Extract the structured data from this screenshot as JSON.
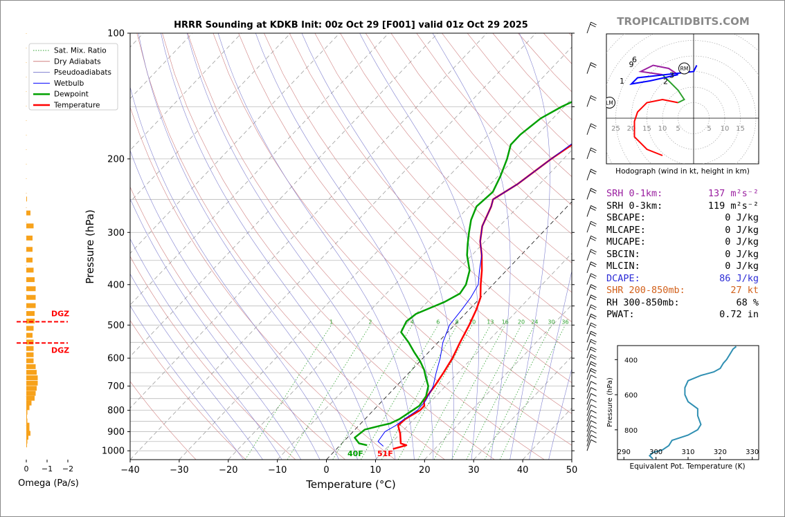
{
  "brand": "TROPICALTIDBITS.COM",
  "title": "HRRR Sounding at KDKB Init: 00z Oct 29 [F001] valid 01z Oct 29 2025",
  "skewt": {
    "xlabel": "Temperature (°C)",
    "ylabel": "Pressure (hPa)",
    "xticks": [
      "−40",
      "−30",
      "−20",
      "−10",
      "0",
      "10",
      "20",
      "30",
      "40",
      "50"
    ],
    "yticks": [
      "100",
      "200",
      "300",
      "400",
      "500",
      "600",
      "700",
      "800",
      "900",
      "1000"
    ],
    "surface_temp_label": "51F",
    "surface_dew_label": "40F",
    "mixratio_labels": [
      "1",
      "2",
      "4",
      "6",
      "8",
      "10",
      "13",
      "16",
      "20",
      "24",
      "30",
      "36"
    ]
  },
  "legend": [
    {
      "label": "Sat. Mix. Ratio",
      "color": "#2ca02c",
      "style": "dotted"
    },
    {
      "label": "Dry Adiabats",
      "color": "#d08080",
      "style": "solid"
    },
    {
      "label": "Pseudoadiabats",
      "color": "#8080d0",
      "style": "solid"
    },
    {
      "label": "Wetbulb",
      "color": "#0000ff",
      "style": "solid"
    },
    {
      "label": "Dewpoint",
      "color": "#00a000",
      "style": "thick"
    },
    {
      "label": "Temperature",
      "color": "#ff0000",
      "style": "thick"
    }
  ],
  "omega": {
    "xlabel": "Omega (Pa/s)",
    "xticks": [
      "0",
      "−1",
      "−2"
    ],
    "dgz_label": "DGZ"
  },
  "hodograph": {
    "caption": "Hodograph (wind in kt, height in km)",
    "ring_labels": [
      "25",
      "20",
      "15",
      "10",
      "5",
      "5",
      "10",
      "15"
    ],
    "height_labels": [
      "1",
      "2",
      "3",
      "6",
      "9"
    ],
    "rm_label": "RM",
    "lm_label": "LM"
  },
  "indices": [
    {
      "label": "SRH 0-1km:",
      "value": "137 m²s⁻²",
      "color": "#9a1fa0"
    },
    {
      "label": "SRH 0-3km:",
      "value": "119 m²s⁻²",
      "color": "#000000"
    },
    {
      "label": "SBCAPE:",
      "value": "0 J/kg",
      "color": "#000000"
    },
    {
      "label": "MLCAPE:",
      "value": "0 J/kg",
      "color": "#000000"
    },
    {
      "label": "MUCAPE:",
      "value": "0 J/kg",
      "color": "#000000"
    },
    {
      "label": "SBCIN:",
      "value": "0 J/kg",
      "color": "#000000"
    },
    {
      "label": "MLCIN:",
      "value": "0 J/kg",
      "color": "#000000"
    },
    {
      "label": "DCAPE:",
      "value": "86 J/kg",
      "color": "#2b2bd6"
    },
    {
      "label": "SHR 200-850mb:",
      "value": "27 kt",
      "color": "#d2601a"
    },
    {
      "label": "RH 300-850mb:",
      "value": "68 %",
      "color": "#000000"
    },
    {
      "label": "PWAT:",
      "value": "0.72 in",
      "color": "#000000"
    }
  ],
  "theta_e_panel": {
    "xlabel": "Equivalent Pot. Temperature (K)",
    "ylabel": "Pressure (hPa)",
    "xticks": [
      "290",
      "300",
      "310",
      "320",
      "330"
    ],
    "yticks": [
      "400",
      "600",
      "800"
    ]
  },
  "chart_data": [
    {
      "type": "line",
      "name": "skewt",
      "title": "HRRR Sounding at KDKB Init: 00z Oct 29 [F001] valid 01z Oct 29 2025",
      "xlabel": "Temperature (°C)",
      "ylabel": "Pressure (hPa)",
      "xlim": [
        -40,
        50
      ],
      "ylim": [
        1050,
        100
      ],
      "y_scale": "log",
      "skew": true,
      "legend_position": "top-left",
      "grid": true,
      "series": [
        {
          "name": "Temperature",
          "color": "#ff0000",
          "points": [
            [
              11.5,
              990
            ],
            [
              13.5,
              970
            ],
            [
              12.0,
              960
            ],
            [
              10.0,
              910
            ],
            [
              8.0,
              870
            ],
            [
              8.2,
              840
            ],
            [
              9.5,
              800
            ],
            [
              9.5,
              780
            ],
            [
              8.5,
              760
            ],
            [
              8.0,
              720
            ],
            [
              7.8,
              700
            ],
            [
              7.0,
              650
            ],
            [
              6.0,
              600
            ],
            [
              4.5,
              550
            ],
            [
              3.0,
              500
            ],
            [
              1.5,
              460
            ],
            [
              0.0,
              430
            ],
            [
              -2.5,
              400
            ],
            [
              -5.0,
              370
            ],
            [
              -8.0,
              340
            ],
            [
              -11.0,
              315
            ],
            [
              -13.5,
              290
            ],
            [
              -15.5,
              260
            ],
            [
              -16.5,
              250
            ],
            [
              -14.5,
              230
            ],
            [
              -12.5,
              200
            ],
            [
              -10.0,
              175
            ],
            [
              -8.5,
              160
            ],
            [
              -7.0,
              150
            ],
            [
              -6.0,
              138
            ],
            [
              -5.5,
              130
            ],
            [
              -5.0,
              120
            ],
            [
              -4.5,
              110
            ],
            [
              -4.0,
              100
            ]
          ]
        },
        {
          "name": "Dewpoint",
          "color": "#00a000",
          "points": [
            [
              5.5,
              970
            ],
            [
              3.5,
              960
            ],
            [
              1.5,
              930
            ],
            [
              2.0,
              890
            ],
            [
              4.5,
              870
            ],
            [
              6.0,
              860
            ],
            [
              7.0,
              840
            ],
            [
              8.0,
              800
            ],
            [
              8.5,
              780
            ],
            [
              8.0,
              740
            ],
            [
              6.5,
              700
            ],
            [
              4.5,
              670
            ],
            [
              2.5,
              640
            ],
            [
              0.0,
              610
            ],
            [
              -3.0,
              580
            ],
            [
              -6.0,
              550
            ],
            [
              -9.5,
              520
            ],
            [
              -10.5,
              490
            ],
            [
              -10.0,
              470
            ],
            [
              -6.5,
              440
            ],
            [
              -5.0,
              420
            ],
            [
              -5.5,
              400
            ],
            [
              -7.5,
              370
            ],
            [
              -11.0,
              340
            ],
            [
              -13.0,
              320
            ],
            [
              -15.0,
              300
            ],
            [
              -17.0,
              280
            ],
            [
              -18.5,
              260
            ],
            [
              -18.0,
              240
            ],
            [
              -19.5,
              220
            ],
            [
              -21.5,
              200
            ],
            [
              -23.5,
              185
            ],
            [
              -23.5,
              175
            ],
            [
              -22.5,
              160
            ],
            [
              -20.5,
              150
            ],
            [
              -17.5,
              140
            ],
            [
              -14.0,
              130
            ],
            [
              -11.5,
              120
            ],
            [
              -9.0,
              110
            ],
            [
              -7.0,
              100
            ]
          ]
        },
        {
          "name": "Wetbulb",
          "color": "#0000ff",
          "points": [
            [
              9.0,
              975
            ],
            [
              7.0,
              950
            ],
            [
              6.5,
              900
            ],
            [
              7.5,
              870
            ],
            [
              8.0,
              840
            ],
            [
              9.0,
              800
            ],
            [
              8.8,
              760
            ],
            [
              8.0,
              720
            ],
            [
              7.5,
              700
            ],
            [
              5.5,
              650
            ],
            [
              3.5,
              600
            ],
            [
              1.0,
              550
            ],
            [
              -1.0,
              500
            ],
            [
              -1.5,
              460
            ],
            [
              -2.0,
              430
            ],
            [
              -3.0,
              400
            ],
            [
              -5.5,
              370
            ],
            [
              -8.0,
              340
            ],
            [
              -11.0,
              315
            ],
            [
              -13.5,
              290
            ],
            [
              -15.5,
              260
            ],
            [
              -16.5,
              250
            ],
            [
              -14.5,
              230
            ],
            [
              -12.5,
              200
            ],
            [
              -10.5,
              175
            ],
            [
              -9.0,
              160
            ],
            [
              -8.5,
              150
            ],
            [
              -8.0,
              138
            ],
            [
              -7.0,
              130
            ],
            [
              -6.5,
              120
            ],
            [
              -6.0,
              110
            ],
            [
              -5.5,
              100
            ]
          ]
        }
      ]
    },
    {
      "type": "bar",
      "name": "omega",
      "xlabel": "Omega (Pa/s)",
      "xlim": [
        1,
        -2
      ],
      "pressure_levels": [
        250,
        270,
        290,
        310,
        330,
        350,
        370,
        390,
        410,
        430,
        450,
        470,
        490,
        510,
        530,
        550,
        570,
        590,
        610,
        630,
        650,
        670,
        690,
        710,
        730,
        750,
        770,
        790,
        810,
        830,
        850,
        870,
        890,
        910,
        930,
        950,
        970
      ],
      "values": [
        -0.02,
        -0.2,
        -0.35,
        -0.3,
        -0.3,
        -0.3,
        -0.35,
        -0.4,
        -0.45,
        -0.45,
        -0.45,
        -0.4,
        -0.4,
        -0.35,
        -0.3,
        -0.35,
        -0.35,
        -0.35,
        -0.35,
        -0.45,
        -0.5,
        -0.55,
        -0.55,
        -0.5,
        -0.45,
        -0.4,
        -0.25,
        -0.15,
        -0.05,
        -0.02,
        -0.05,
        -0.15,
        -0.15,
        -0.2,
        -0.1,
        -0.05,
        -0.02
      ],
      "dgz_levels": [
        491,
        552
      ]
    },
    {
      "type": "line",
      "name": "hodograph",
      "xlabel": "",
      "ylabel": "",
      "series": [
        {
          "name": "0-1 km",
          "color": "#ff0000",
          "points": [
            [
              -10,
              -12
            ],
            [
              -15,
              -10
            ],
            [
              -19,
              -6
            ],
            [
              -19,
              -1
            ],
            [
              -18,
              2
            ],
            [
              -15,
              5
            ],
            [
              -10,
              6
            ],
            [
              -5,
              5
            ]
          ]
        },
        {
          "name": "1-3 km",
          "color": "#2ca02c",
          "points": [
            [
              -5,
              5
            ],
            [
              -3,
              6
            ],
            [
              -5,
              9
            ],
            [
              -10,
              14
            ]
          ]
        },
        {
          "name": "3-6 km",
          "color": "#9a1fa0",
          "points": [
            [
              -10,
              14
            ],
            [
              -17,
              15
            ],
            [
              -13,
              17
            ],
            [
              -8,
              16
            ],
            [
              -5,
              14
            ]
          ]
        },
        {
          "name": "6+ km",
          "color": "#0000ff",
          "points": [
            [
              -5,
              14
            ],
            [
              -14,
              12
            ],
            [
              -20,
              11
            ],
            [
              -18,
              13
            ],
            [
              0,
              15
            ],
            [
              1,
              17
            ]
          ]
        }
      ],
      "markers": [
        {
          "label": "RM",
          "u": -3,
          "v": 16
        },
        {
          "label": "LM",
          "u": -27,
          "v": 5
        }
      ]
    },
    {
      "type": "line",
      "name": "theta_e",
      "xlabel": "Equivalent Pot. Temperature (K)",
      "ylabel": "Pressure (hPa)",
      "xlim": [
        288,
        332
      ],
      "ylim": [
        970,
        320
      ],
      "series": [
        {
          "name": "Theta-E",
          "color": "#2f8fb2",
          "points": [
            [
              299,
              965
            ],
            [
              298,
              948
            ],
            [
              299,
              930
            ],
            [
              302,
              915
            ],
            [
              304,
              890
            ],
            [
              305,
              860
            ],
            [
              310,
              830
            ],
            [
              313,
              800
            ],
            [
              314,
              770
            ],
            [
              313,
              720
            ],
            [
              313,
              680
            ],
            [
              310,
              640
            ],
            [
              309,
              600
            ],
            [
              309,
              560
            ],
            [
              310,
              520
            ],
            [
              314,
              490
            ],
            [
              318,
              470
            ],
            [
              320,
              450
            ],
            [
              321,
              420
            ],
            [
              322,
              400
            ],
            [
              323,
              370
            ],
            [
              324,
              340
            ],
            [
              325,
              325
            ]
          ]
        }
      ]
    }
  ]
}
